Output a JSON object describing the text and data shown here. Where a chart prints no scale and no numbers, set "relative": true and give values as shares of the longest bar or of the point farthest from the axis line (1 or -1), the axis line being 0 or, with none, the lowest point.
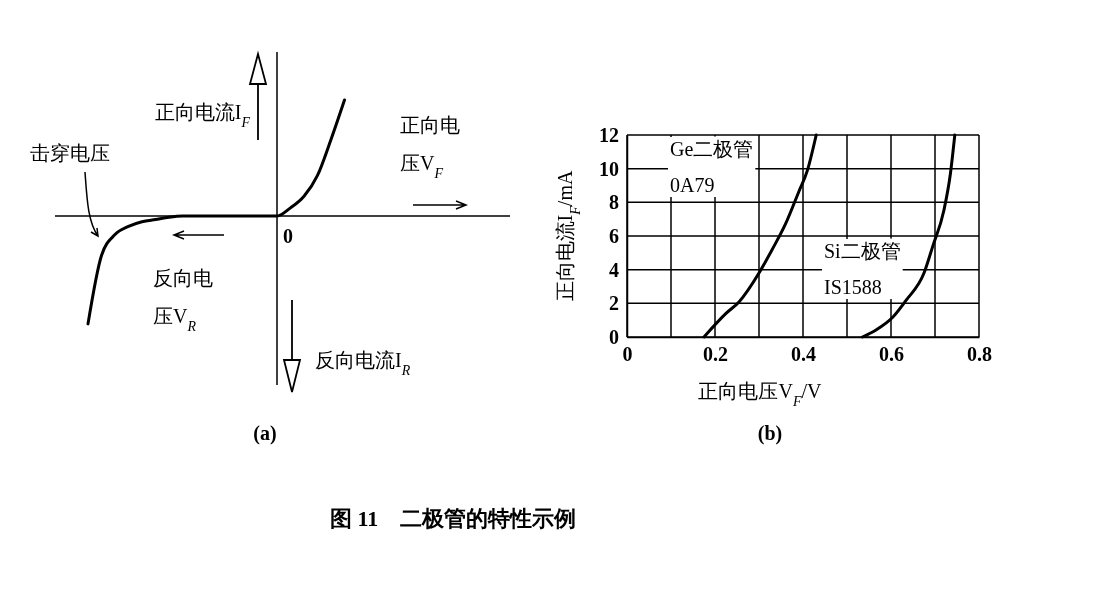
{
  "chart_data": [
    {
      "type": "line",
      "title": "(a)",
      "relative": true,
      "categories": [
        null,
        null,
        null,
        null,
        null,
        null,
        null,
        null,
        null,
        null,
        null,
        null,
        null,
        null,
        null,
        null,
        null,
        null,
        null,
        null,
        null,
        null,
        null,
        null,
        null,
        null,
        null,
        null,
        null,
        null,
        null,
        null
      ],
      "series": [
        {
          "color": "#000000",
          "values": [
            -0.93,
            -0.34,
            -0.16,
            -0.09,
            -0.05,
            -0.03,
            -0.01,
            0,
            0,
            0,
            0,
            0,
            0,
            0,
            0,
            0.07,
            0.17,
            0.35,
            0.66,
            1,
            null,
            null,
            null,
            null,
            null,
            null,
            null,
            null,
            null,
            null,
            null,
            null
          ]
        }
      ],
      "annotations": [
        "正向电流I$_{F}$",
        "正向电压V$_{F}$",
        "击穿电压",
        "反向电压V$_{R}$",
        "反向电流I$_{R}$",
        "0",
        "图 11　二极管的特性示例"
      ]
    },
    {
      "type": "line",
      "title": "(b)",
      "xlabel": "正向电压V$_{F}$/V",
      "ylabel": "正向电流I$_{F}$/mA",
      "grid": true,
      "xlim": [
        0,
        0.8
      ],
      "ylim": [
        0,
        12
      ],
      "xticks": [
        0,
        {
          "value": 0.1,
          "label": null
        },
        0.2,
        {
          "value": 0.3,
          "label": null
        },
        0.4,
        {
          "value": 0.5,
          "label": null
        },
        0.6,
        {
          "value": 0.7,
          "label": null
        },
        0.8
      ],
      "yticks": [
        0,
        2,
        4,
        6,
        8,
        10,
        12
      ],
      "series": [
        {
          "name": "Ge二极管 0A79",
          "color": "#000000",
          "x": [
            0.175,
            0.225,
            0.255,
            0.3,
            0.33,
            0.36,
            0.39,
            0.41,
            0.43
          ],
          "values": [
            0,
            1.4,
            2.1,
            3.8,
            5.2,
            6.7,
            8.6,
            9.9,
            12
          ]
        },
        {
          "name": "Si二极管 IS1588",
          "color": "#000000",
          "x": [
            0.535,
            0.565,
            0.605,
            0.635,
            0.675,
            0.695,
            0.72,
            0.735,
            0.745
          ],
          "values": [
            0,
            0.4,
            1.2,
            2.2,
            3.8,
            5.4,
            7.5,
            9.7,
            12
          ]
        }
      ]
    }
  ]
}
